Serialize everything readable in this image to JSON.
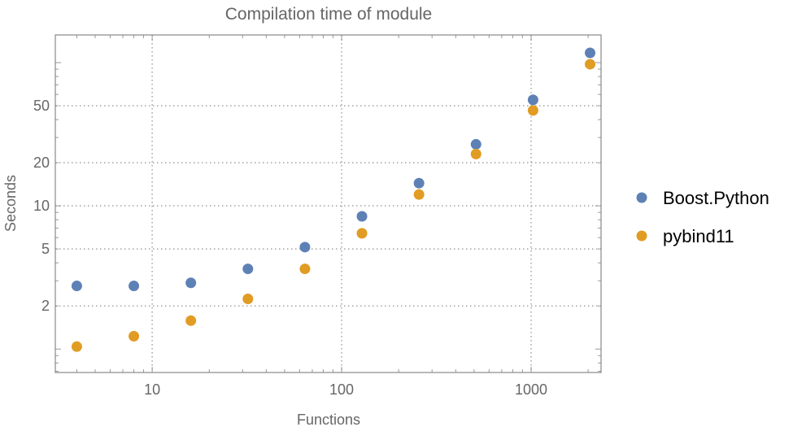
{
  "chart_data": {
    "type": "scatter",
    "title": "Compilation time of module",
    "xlabel": "Functions",
    "ylabel": "Seconds",
    "xscale": "log",
    "yscale": "log",
    "xlim": [
      3.08,
      2340
    ],
    "ylim": [
      0.686,
      156
    ],
    "xticks": [
      10,
      100,
      1000
    ],
    "xtick_labels": [
      "10",
      "100",
      "1000"
    ],
    "yticks": [
      2,
      5,
      10,
      20,
      50
    ],
    "ytick_labels": [
      "2",
      "5",
      "10",
      "20",
      "50"
    ],
    "grid": true,
    "legend_position": "right",
    "x": [
      4,
      8,
      16,
      32,
      64,
      128,
      256,
      512,
      1024,
      2048
    ],
    "series": [
      {
        "name": "Boost.Python",
        "color": "#5e81b5",
        "values": [
          2.76,
          2.76,
          2.9,
          3.63,
          5.15,
          8.45,
          14.4,
          26.9,
          55,
          117
        ]
      },
      {
        "name": "pybind11",
        "color": "#e19c24",
        "values": [
          1.04,
          1.23,
          1.58,
          2.24,
          3.63,
          6.43,
          12.0,
          23.0,
          46.4,
          97.5
        ]
      }
    ]
  }
}
